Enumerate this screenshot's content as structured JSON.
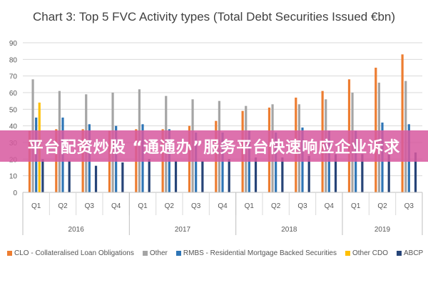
{
  "chart_data": {
    "type": "bar",
    "title": "Chart 3: Top 5 FVC Activity types (Total Debt Securities Issued €bn)",
    "ylim": [
      0,
      90
    ],
    "yticks": [
      0,
      10,
      20,
      30,
      40,
      50,
      60,
      70,
      80,
      90
    ],
    "grid": true,
    "legend_position": "bottom",
    "categories": [
      "Q1",
      "Q2",
      "Q3",
      "Q4",
      "Q1",
      "Q2",
      "Q3",
      "Q4",
      "Q1",
      "Q2",
      "Q3",
      "Q4",
      "Q1",
      "Q2",
      "Q3"
    ],
    "years": [
      {
        "label": "2016",
        "start": 0,
        "count": 4
      },
      {
        "label": "2017",
        "start": 4,
        "count": 4
      },
      {
        "label": "2018",
        "start": 8,
        "count": 4
      },
      {
        "label": "2019",
        "start": 12,
        "count": 3
      }
    ],
    "series": [
      {
        "name": "CLO - Collateralised Loan Obligations",
        "color": "#ed7d31",
        "values": [
          37,
          38,
          38,
          37,
          38,
          38,
          40,
          43,
          49,
          51,
          57,
          61,
          68,
          75,
          83
        ]
      },
      {
        "name": "Other",
        "color": "#a5a5a5",
        "values": [
          68,
          61,
          59,
          60,
          62,
          58,
          56,
          55,
          52,
          53,
          53,
          56,
          60,
          66,
          67
        ]
      },
      {
        "name": "RMBS - Residential Mortgage Backed Securities",
        "color": "#2e75b6",
        "values": [
          45,
          45,
          41,
          40,
          41,
          38,
          36,
          36,
          37,
          36,
          39,
          37,
          37,
          42,
          41
        ]
      },
      {
        "name": "Other CDO",
        "color": "#ffc000",
        "values": [
          54,
          0,
          0,
          0,
          0,
          0,
          0,
          0,
          0,
          0,
          0,
          0,
          0,
          0,
          0
        ]
      },
      {
        "name": "ABCP",
        "color": "#264478",
        "values": [
          20,
          19,
          16,
          18,
          20,
          19,
          19,
          20,
          21,
          21,
          22,
          23,
          23,
          23,
          24
        ]
      }
    ]
  },
  "banner": {
    "text": "平台配资炒股 “通通办”服务平台快速响应企业诉求"
  }
}
